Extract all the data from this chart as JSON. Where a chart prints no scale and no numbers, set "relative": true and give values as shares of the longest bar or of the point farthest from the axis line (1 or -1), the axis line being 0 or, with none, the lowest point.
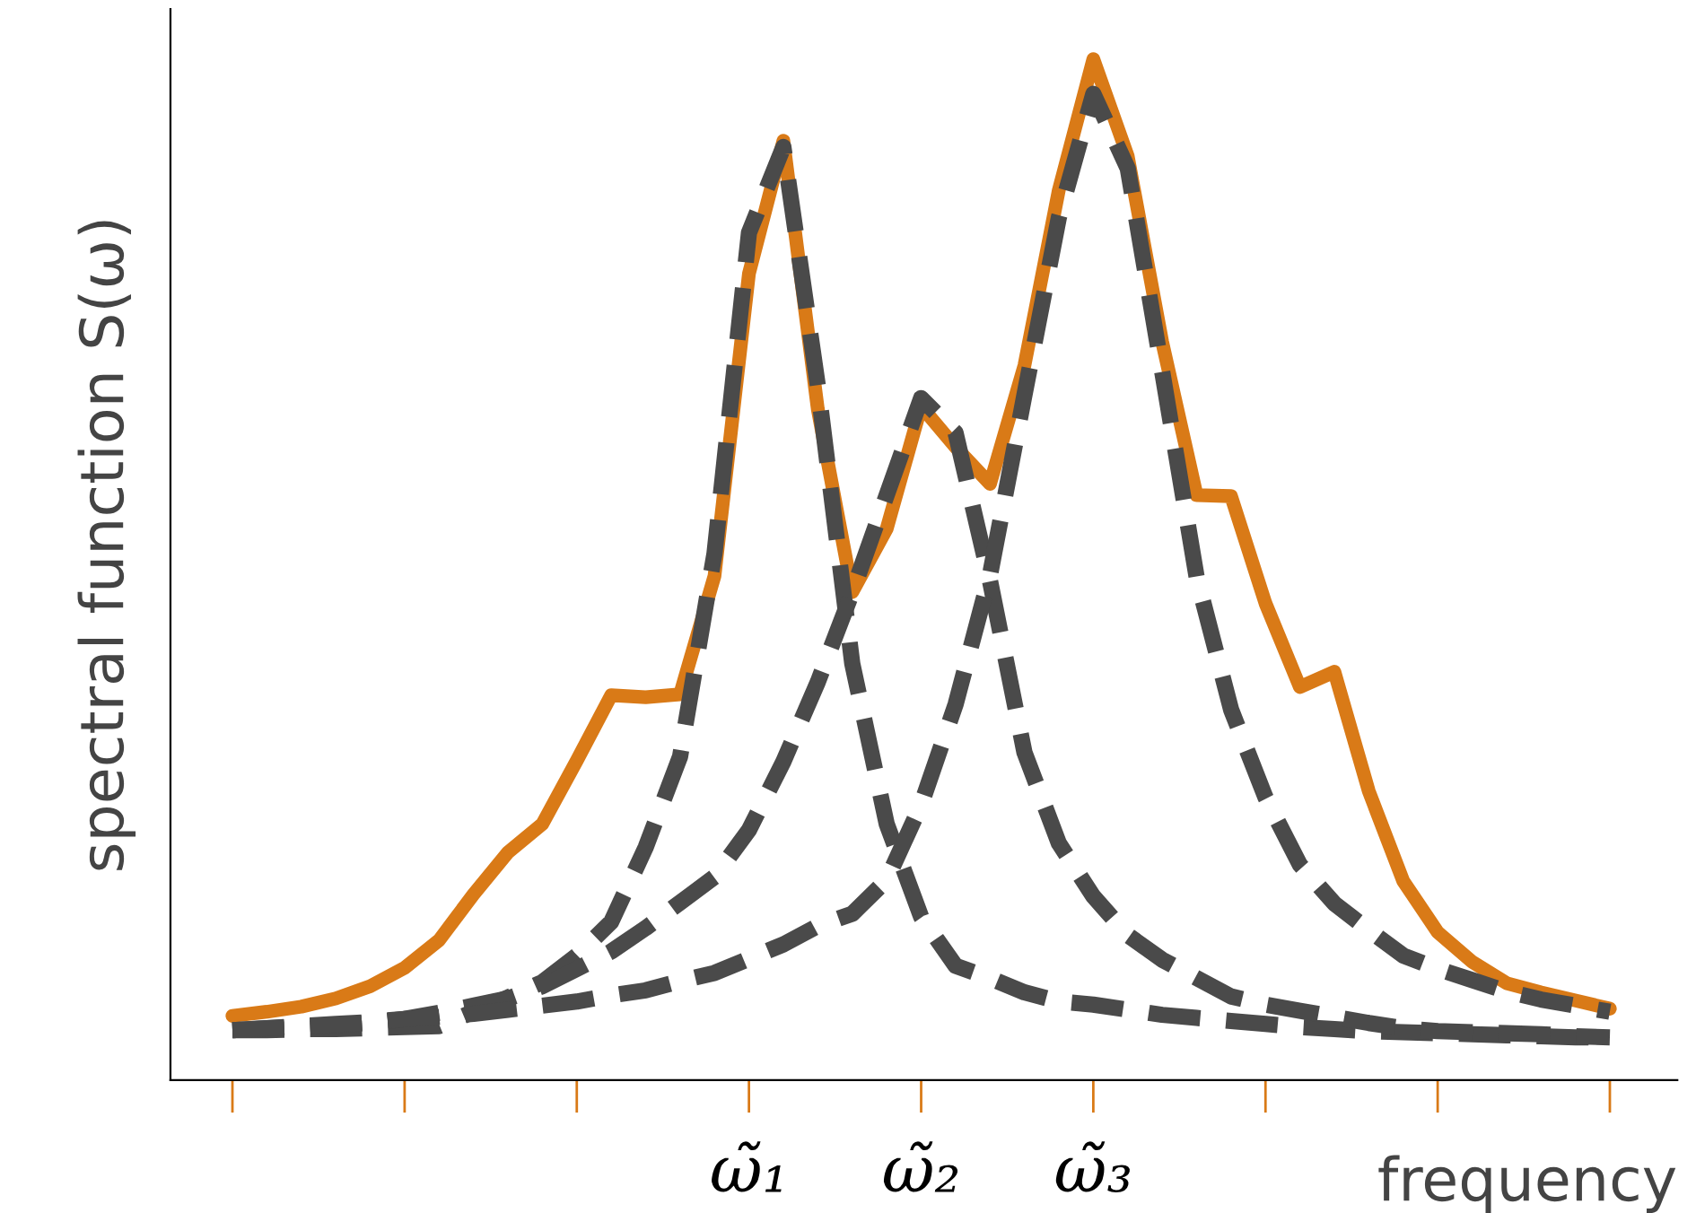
{
  "chart_data": {
    "type": "line",
    "relative": true,
    "ylabel": "spectral function S(ω)",
    "xlabel": "frequency",
    "categories": [
      null,
      null,
      null,
      null,
      null,
      null,
      null,
      null,
      null,
      null,
      null,
      null,
      null,
      null,
      null,
      "ω̃₁",
      null,
      null,
      null,
      null,
      "ω̃₂",
      null,
      null,
      null,
      null,
      "ω̃₃",
      null,
      null,
      null,
      null,
      null,
      null,
      null,
      null,
      null,
      null,
      null,
      null,
      null,
      null,
      null
    ],
    "grid": false,
    "legend": false,
    "marker": "none",
    "series": [
      {
        "color": "#d97a17",
        "line_style": "solid",
        "values": [
          0.063,
          0.067,
          0.072,
          0.08,
          0.092,
          0.11,
          0.137,
          0.182,
          0.223,
          0.251,
          0.313,
          0.377,
          0.375,
          0.378,
          0.494,
          0.79,
          0.92,
          0.657,
          0.478,
          0.54,
          0.66,
          0.62,
          0.584,
          0.7,
          0.872,
          1.0,
          0.905,
          0.723,
          0.573,
          0.572,
          0.467,
          0.385,
          0.4,
          0.283,
          0.195,
          0.145,
          0.116,
          0.095,
          0.086,
          0.078,
          0.07
        ]
      },
      {
        "color": "#4a4a4a",
        "line_style": "dashed",
        "values": [
          0.049,
          0.049,
          0.05,
          0.05,
          0.051,
          0.052,
          0.053,
          0.067,
          0.081,
          0.096,
          0.122,
          0.155,
          0.228,
          0.317,
          0.516,
          0.83,
          0.914,
          0.68,
          0.408,
          0.251,
          0.16,
          0.112,
          0.1,
          0.086,
          0.077,
          0.074,
          0.069,
          0.064,
          0.061,
          0.058,
          0.055,
          0.052,
          0.05,
          0.048,
          0.047,
          0.046,
          0.045,
          0.044,
          0.043,
          0.042,
          0.042
        ]
      },
      {
        "color": "#4a4a4a",
        "line_style": "dashed",
        "values": [
          0.049,
          0.051,
          0.052,
          0.054,
          0.056,
          0.06,
          0.066,
          0.073,
          0.08,
          0.092,
          0.109,
          0.126,
          0.149,
          0.174,
          0.199,
          0.245,
          0.312,
          0.39,
          0.478,
          0.573,
          0.668,
          0.634,
          0.489,
          0.321,
          0.232,
          0.18,
          0.142,
          0.118,
          0.1,
          0.082,
          0.074,
          0.068,
          0.062,
          0.056,
          0.051,
          0.048,
          0.047,
          0.046,
          0.045,
          0.043,
          0.042
        ]
      },
      {
        "color": "#4a4a4a",
        "line_style": "dashed",
        "values": [
          0.049,
          0.051,
          0.053,
          0.055,
          0.057,
          0.06,
          0.062,
          0.065,
          0.069,
          0.073,
          0.077,
          0.083,
          0.088,
          0.097,
          0.105,
          0.119,
          0.133,
          0.151,
          0.163,
          0.196,
          0.27,
          0.368,
          0.495,
          0.671,
          0.845,
          0.966,
          0.893,
          0.694,
          0.493,
          0.363,
          0.277,
          0.211,
          0.173,
          0.147,
          0.122,
          0.109,
          0.098,
          0.087,
          0.079,
          0.073,
          0.067
        ]
      }
    ]
  }
}
